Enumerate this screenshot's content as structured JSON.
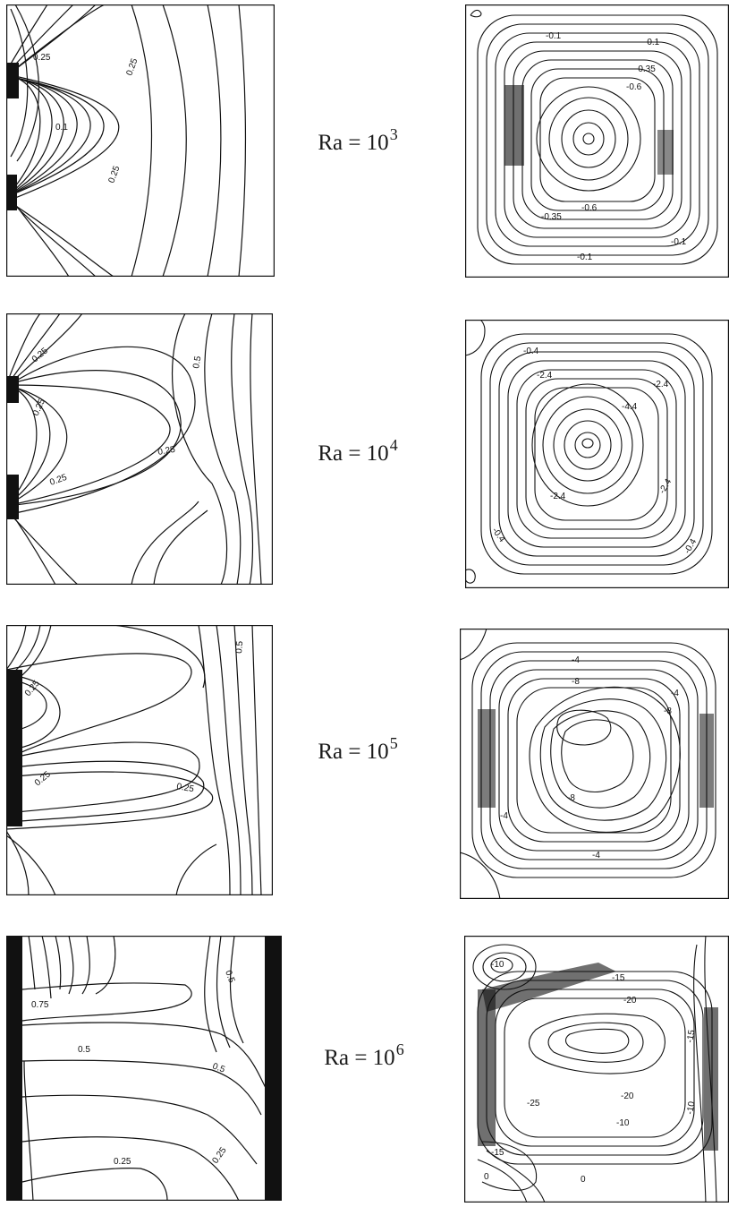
{
  "rows": [
    {
      "ra": {
        "prefix": "Ra = 10",
        "exp": "3"
      },
      "isotherm_labels": [
        "0.25",
        "0.25",
        "0.1",
        "0.25"
      ],
      "stream_labels": [
        "-0.1",
        "-0.1",
        "-0.35",
        "-0.6",
        "-0.6",
        "-0.35",
        "-0.1",
        "-0.1"
      ]
    },
    {
      "ra": {
        "prefix": "Ra = 10",
        "exp": "4"
      },
      "isotherm_labels": [
        "0.25",
        "0.25",
        "0.25",
        "0.25",
        "0.5"
      ],
      "stream_labels": [
        "-0.4",
        "-2.4",
        "-2.4",
        "-4.4",
        "-2.4",
        "-2.4",
        "-0.4",
        "-0.4"
      ]
    },
    {
      "ra": {
        "prefix": "Ra = 10",
        "exp": "5"
      },
      "isotherm_labels": [
        "0.25",
        "0.25",
        "0.5",
        "0.25"
      ],
      "stream_labels": [
        "-4",
        "-8",
        "-4",
        "-8",
        "-8",
        "-4",
        "-4"
      ]
    },
    {
      "ra": {
        "prefix": "Ra = 10",
        "exp": "6"
      },
      "isotherm_labels": [
        "0.75",
        "0.5",
        "0.5",
        "0.5",
        "0.25",
        "0.25"
      ],
      "stream_labels": [
        "-10",
        "-15",
        "-20",
        "-25",
        "-20",
        "-10",
        "-15",
        "0",
        "0",
        "-15",
        "-10"
      ]
    }
  ]
}
